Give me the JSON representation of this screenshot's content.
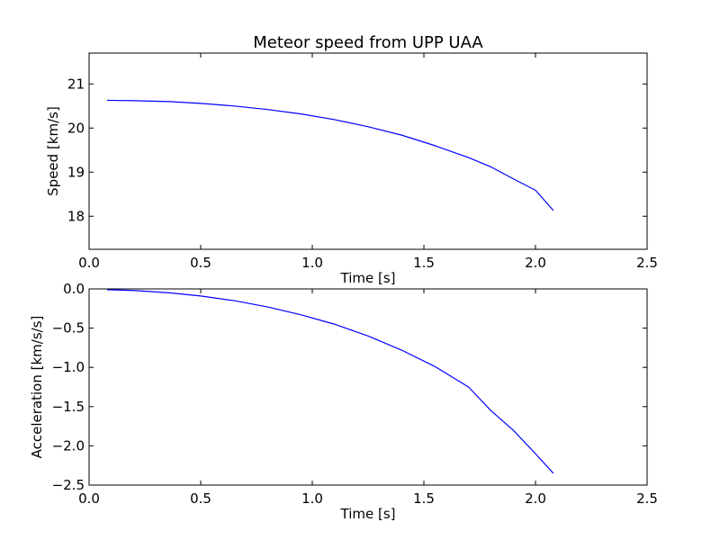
{
  "title": "Meteor speed from  UPP UAA",
  "colors": {
    "line": "#0000ff",
    "frame": "#000000",
    "background": "#ffffff"
  },
  "chart_data": [
    {
      "type": "line",
      "title": "Meteor speed from  UPP UAA",
      "xlabel": "Time [s]",
      "ylabel": "Speed [km/s]",
      "xlim": [
        0.0,
        2.5
      ],
      "ylim": [
        17.25,
        21.7
      ],
      "xticks": [
        0.0,
        0.5,
        1.0,
        1.5,
        2.0,
        2.5
      ],
      "xtick_labels": [
        "0.0",
        "0.5",
        "1.0",
        "1.5",
        "2.0",
        "2.5"
      ],
      "yticks": [
        18,
        19,
        20,
        21
      ],
      "ytick_labels": [
        "18",
        "19",
        "20",
        "21"
      ],
      "grid": false,
      "series": [
        {
          "x": [
            0.08,
            0.2,
            0.36,
            0.5,
            0.65,
            0.8,
            0.95,
            1.1,
            1.25,
            1.4,
            1.55,
            1.7,
            1.8,
            1.9,
            2.0,
            2.08
          ],
          "values": [
            20.63,
            20.62,
            20.6,
            20.56,
            20.5,
            20.42,
            20.32,
            20.19,
            20.03,
            19.84,
            19.6,
            19.33,
            19.12,
            18.85,
            18.59,
            18.13
          ]
        }
      ]
    },
    {
      "type": "line",
      "xlabel": "Time [s]",
      "ylabel": "Acceleration [km/s/s]",
      "xlim": [
        0.0,
        2.5
      ],
      "ylim": [
        -2.5,
        0.0
      ],
      "xticks": [
        0.0,
        0.5,
        1.0,
        1.5,
        2.0,
        2.5
      ],
      "xtick_labels": [
        "0.0",
        "0.5",
        "1.0",
        "1.5",
        "2.0",
        "2.5"
      ],
      "yticks": [
        0.0,
        -0.5,
        -1.0,
        -1.5,
        -2.0,
        -2.5
      ],
      "ytick_labels": [
        "0.0",
        "−0.5",
        "−1.0",
        "−1.5",
        "−2.0",
        "−2.5"
      ],
      "grid": false,
      "series": [
        {
          "x": [
            0.08,
            0.2,
            0.36,
            0.5,
            0.65,
            0.8,
            0.95,
            1.1,
            1.25,
            1.4,
            1.55,
            1.7,
            1.8,
            1.9,
            2.0,
            2.08
          ],
          "values": [
            -0.01,
            -0.02,
            -0.05,
            -0.09,
            -0.15,
            -0.23,
            -0.33,
            -0.45,
            -0.6,
            -0.78,
            -0.99,
            -1.25,
            -1.55,
            -1.8,
            -2.1,
            -2.35
          ]
        }
      ]
    }
  ]
}
